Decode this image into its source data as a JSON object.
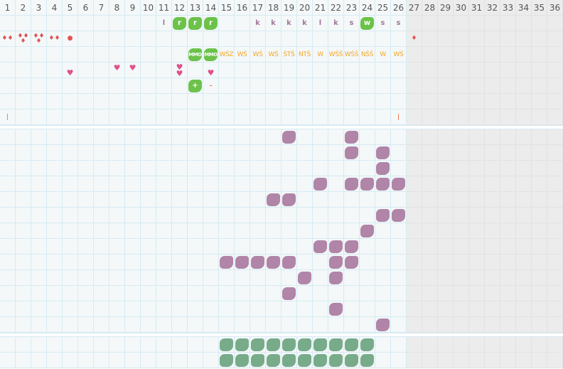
{
  "columns": [
    "1",
    "2",
    "3",
    "4",
    "5",
    "6",
    "7",
    "8",
    "9",
    "10",
    "11",
    "12",
    "13",
    "14",
    "15",
    "16",
    "17",
    "18",
    "19",
    "20",
    "21",
    "22",
    "23",
    "24",
    "25",
    "26",
    "27",
    "28",
    "29",
    "30",
    "31",
    "32",
    "33",
    "34",
    "35",
    "36"
  ],
  "active_columns": 26,
  "colors": {
    "grid_line": "#d6ebf3",
    "cell_bg": "#f4f8f9",
    "inactive_bg": "#ececec",
    "purple": "#b085a8",
    "green": "#78ab8a",
    "lime": "#6cc24a",
    "drop": "#e05555",
    "heart": "#e0508a",
    "orange_text": "#f5a623"
  },
  "top_rows": [
    {
      "cells": [
        {
          "col": 11,
          "type": "txt-purple",
          "text": "l"
        },
        {
          "col": 12,
          "type": "lime",
          "text": "r"
        },
        {
          "col": 13,
          "type": "lime",
          "text": "r"
        },
        {
          "col": 14,
          "type": "lime",
          "text": "r"
        },
        {
          "col": 17,
          "type": "txt-purple",
          "text": "k"
        },
        {
          "col": 18,
          "type": "txt-purple",
          "text": "k"
        },
        {
          "col": 19,
          "type": "txt-purple",
          "text": "k"
        },
        {
          "col": 20,
          "type": "txt-purple",
          "text": "k"
        },
        {
          "col": 21,
          "type": "txt-purple",
          "text": "l"
        },
        {
          "col": 22,
          "type": "txt-purple",
          "text": "k"
        },
        {
          "col": 23,
          "type": "txt-purple",
          "text": "s"
        },
        {
          "col": 24,
          "type": "lime",
          "text": "w"
        },
        {
          "col": 25,
          "type": "txt-purple",
          "text": "s"
        },
        {
          "col": 26,
          "type": "txt-purple",
          "text": "s"
        }
      ]
    },
    {
      "cells": [
        {
          "col": 1,
          "type": "drops",
          "text": "♦♦",
          "icon": "two-drops-icon"
        },
        {
          "col": 2,
          "type": "drops",
          "text": "♦♦\n♦",
          "icon": "three-drops-icon"
        },
        {
          "col": 3,
          "type": "drops",
          "text": "♦♦\n♦",
          "icon": "three-drops-icon"
        },
        {
          "col": 4,
          "type": "drops",
          "text": "♦♦",
          "icon": "two-drops-icon"
        },
        {
          "col": 5,
          "type": "drops",
          "text": "●",
          "icon": "circle-icon"
        },
        {
          "col": 27,
          "type": "drops",
          "text": "♦",
          "icon": "drop-icon"
        }
      ]
    },
    {
      "cells": [
        {
          "col": 13,
          "type": "lime small",
          "text": "MMO"
        },
        {
          "col": 14,
          "type": "lime small",
          "text": "MMO"
        },
        {
          "col": 15,
          "type": "txt-orange",
          "text": "WŚZ"
        },
        {
          "col": 16,
          "type": "txt-orange",
          "text": "WŚ"
        },
        {
          "col": 17,
          "type": "txt-orange",
          "text": "WŚ"
        },
        {
          "col": 18,
          "type": "txt-orange",
          "text": "WŚ"
        },
        {
          "col": 19,
          "type": "txt-orange",
          "text": "ŚTŚ"
        },
        {
          "col": 20,
          "type": "txt-orange",
          "text": "NTŚ"
        },
        {
          "col": 21,
          "type": "txt-orange",
          "text": "W"
        },
        {
          "col": 22,
          "type": "txt-orange",
          "text": "WŚŚ"
        },
        {
          "col": 23,
          "type": "txt-orange",
          "text": "WŚŚ"
        },
        {
          "col": 24,
          "type": "txt-orange",
          "text": "NŚŚ"
        },
        {
          "col": 25,
          "type": "txt-orange",
          "text": "W"
        },
        {
          "col": 26,
          "type": "txt-orange",
          "text": "WŚ"
        }
      ]
    },
    {
      "cells": [
        {
          "col": 5,
          "type": "heart low",
          "text": "♥",
          "icon": "heart-icon"
        },
        {
          "col": 8,
          "type": "heart high",
          "text": "♥",
          "icon": "heart-icon"
        },
        {
          "col": 9,
          "type": "heart high",
          "text": "♥",
          "icon": "heart-icon"
        },
        {
          "col": 12,
          "type": "heart",
          "text": "♥\n♥",
          "icon": "double-heart-icon"
        },
        {
          "col": 14,
          "type": "heart low",
          "text": "♥",
          "icon": "heart-icon"
        }
      ]
    },
    {
      "cells": [
        {
          "col": 13,
          "type": "lime",
          "text": "+"
        },
        {
          "col": 14,
          "type": "mark-orange",
          "text": "–"
        }
      ]
    },
    {
      "cells": []
    },
    {
      "cells": [
        {
          "col": 1,
          "type": "mark-orange",
          "text": "|"
        },
        {
          "col": 26,
          "type": "mark-orange",
          "text": "|"
        }
      ]
    }
  ],
  "middle_rows": [
    [
      19,
      23
    ],
    [
      23,
      25
    ],
    [
      25
    ],
    [
      21,
      23,
      24,
      25,
      26
    ],
    [
      18,
      19
    ],
    [
      25,
      26
    ],
    [
      24
    ],
    [
      21,
      22,
      23
    ],
    [
      15,
      16,
      17,
      18,
      19,
      22,
      23
    ],
    [
      20,
      22
    ],
    [
      19
    ],
    [
      22
    ],
    [
      25
    ]
  ],
  "bottom_rows": [
    [
      15,
      16,
      17,
      18,
      19,
      20,
      21,
      22,
      23,
      24
    ],
    [
      15,
      16,
      17,
      18,
      19,
      20,
      21,
      22,
      23,
      24
    ]
  ]
}
